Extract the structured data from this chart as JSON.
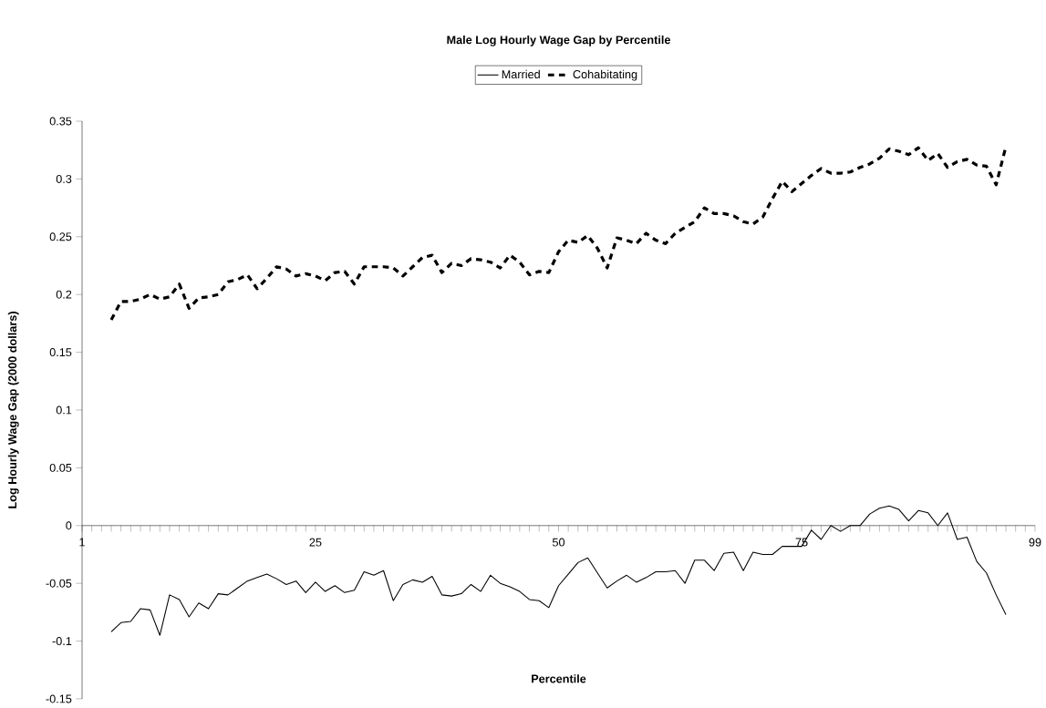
{
  "chart_data": {
    "type": "line",
    "title": "Male Log Hourly Wage Gap by Percentile",
    "xlabel": "Percentile",
    "ylabel": "Log Hourly Wage Gap (2000 dollars)",
    "x": [
      4,
      5,
      6,
      7,
      8,
      9,
      10,
      11,
      12,
      13,
      14,
      15,
      16,
      17,
      18,
      19,
      20,
      21,
      22,
      23,
      24,
      25,
      26,
      27,
      28,
      29,
      30,
      31,
      32,
      33,
      34,
      35,
      36,
      37,
      38,
      39,
      40,
      41,
      42,
      43,
      44,
      45,
      46,
      47,
      48,
      49,
      50,
      51,
      52,
      53,
      54,
      55,
      56,
      57,
      58,
      59,
      60,
      61,
      62,
      63,
      64,
      65,
      66,
      67,
      68,
      69,
      70,
      71,
      72,
      73,
      74,
      75,
      76,
      77,
      78,
      79,
      80,
      81,
      82,
      83,
      84,
      85,
      86,
      87,
      88,
      89,
      90,
      91,
      92,
      93,
      94,
      95,
      96
    ],
    "series": [
      {
        "name": "Married",
        "color": "#000000",
        "line_style": "solid",
        "values": [
          -0.092,
          -0.084,
          -0.083,
          -0.072,
          -0.073,
          -0.095,
          -0.06,
          -0.064,
          -0.079,
          -0.067,
          -0.072,
          -0.059,
          -0.06,
          -0.054,
          -0.048,
          -0.045,
          -0.042,
          -0.046,
          -0.051,
          -0.048,
          -0.058,
          -0.049,
          -0.057,
          -0.052,
          -0.058,
          -0.056,
          -0.04,
          -0.043,
          -0.039,
          -0.065,
          -0.051,
          -0.047,
          -0.049,
          -0.044,
          -0.06,
          -0.061,
          -0.059,
          -0.051,
          -0.057,
          -0.043,
          -0.05,
          -0.053,
          -0.057,
          -0.064,
          -0.065,
          -0.071,
          -0.052,
          -0.042,
          -0.032,
          -0.028,
          -0.041,
          -0.054,
          -0.048,
          -0.043,
          -0.049,
          -0.045,
          -0.04,
          -0.04,
          -0.039,
          -0.05,
          -0.03,
          -0.03,
          -0.039,
          -0.024,
          -0.023,
          -0.039,
          -0.023,
          -0.025,
          -0.025,
          -0.018,
          -0.018,
          -0.018,
          -0.004,
          -0.012,
          0.0,
          -0.005,
          0.0,
          0.0,
          0.01,
          0.015,
          0.017,
          0.014,
          0.004,
          0.013,
          0.011,
          0.0,
          0.011,
          -0.012,
          -0.01,
          -0.031,
          -0.041,
          -0.06,
          -0.077
        ]
      },
      {
        "name": "Cohabitating",
        "color": "#000000",
        "line_style": "dashed",
        "values": [
          0.178,
          0.194,
          0.194,
          0.196,
          0.2,
          0.196,
          0.198,
          0.209,
          0.188,
          0.197,
          0.198,
          0.2,
          0.211,
          0.213,
          0.217,
          0.205,
          0.214,
          0.224,
          0.222,
          0.216,
          0.218,
          0.216,
          0.212,
          0.219,
          0.22,
          0.209,
          0.224,
          0.224,
          0.224,
          0.223,
          0.216,
          0.224,
          0.232,
          0.234,
          0.219,
          0.227,
          0.225,
          0.231,
          0.23,
          0.228,
          0.223,
          0.234,
          0.228,
          0.217,
          0.22,
          0.219,
          0.237,
          0.247,
          0.245,
          0.251,
          0.24,
          0.223,
          0.249,
          0.247,
          0.244,
          0.253,
          0.247,
          0.244,
          0.253,
          0.258,
          0.263,
          0.275,
          0.27,
          0.27,
          0.268,
          0.263,
          0.261,
          0.267,
          0.283,
          0.298,
          0.289,
          0.296,
          0.303,
          0.309,
          0.305,
          0.305,
          0.306,
          0.31,
          0.313,
          0.318,
          0.326,
          0.324,
          0.321,
          0.327,
          0.316,
          0.322,
          0.31,
          0.315,
          0.317,
          0.312,
          0.311,
          0.295,
          0.328
        ]
      }
    ],
    "xlim": [
      1,
      99
    ],
    "xticks": [
      1,
      {
        "value": 2,
        "label": null
      },
      {
        "value": 3,
        "label": null
      },
      {
        "value": 4,
        "label": null
      },
      {
        "value": 5,
        "label": null
      },
      {
        "value": 6,
        "label": null
      },
      {
        "value": 7,
        "label": null
      },
      {
        "value": 8,
        "label": null
      },
      {
        "value": 9,
        "label": null
      },
      {
        "value": 10,
        "label": null
      },
      {
        "value": 11,
        "label": null
      },
      {
        "value": 12,
        "label": null
      },
      {
        "value": 13,
        "label": null
      },
      {
        "value": 14,
        "label": null
      },
      {
        "value": 15,
        "label": null
      },
      {
        "value": 16,
        "label": null
      },
      {
        "value": 17,
        "label": null
      },
      {
        "value": 18,
        "label": null
      },
      {
        "value": 19,
        "label": null
      },
      {
        "value": 20,
        "label": null
      },
      {
        "value": 21,
        "label": null
      },
      {
        "value": 22,
        "label": null
      },
      {
        "value": 23,
        "label": null
      },
      {
        "value": 24,
        "label": null
      },
      25,
      {
        "value": 26,
        "label": null
      },
      {
        "value": 27,
        "label": null
      },
      {
        "value": 28,
        "label": null
      },
      {
        "value": 29,
        "label": null
      },
      {
        "value": 30,
        "label": null
      },
      {
        "value": 31,
        "label": null
      },
      {
        "value": 32,
        "label": null
      },
      {
        "value": 33,
        "label": null
      },
      {
        "value": 34,
        "label": null
      },
      {
        "value": 35,
        "label": null
      },
      {
        "value": 36,
        "label": null
      },
      {
        "value": 37,
        "label": null
      },
      {
        "value": 38,
        "label": null
      },
      {
        "value": 39,
        "label": null
      },
      {
        "value": 40,
        "label": null
      },
      {
        "value": 41,
        "label": null
      },
      {
        "value": 42,
        "label": null
      },
      {
        "value": 43,
        "label": null
      },
      {
        "value": 44,
        "label": null
      },
      {
        "value": 45,
        "label": null
      },
      {
        "value": 46,
        "label": null
      },
      {
        "value": 47,
        "label": null
      },
      {
        "value": 48,
        "label": null
      },
      {
        "value": 49,
        "label": null
      },
      50,
      {
        "value": 51,
        "label": null
      },
      {
        "value": 52,
        "label": null
      },
      {
        "value": 53,
        "label": null
      },
      {
        "value": 54,
        "label": null
      },
      {
        "value": 55,
        "label": null
      },
      {
        "value": 56,
        "label": null
      },
      {
        "value": 57,
        "label": null
      },
      {
        "value": 58,
        "label": null
      },
      {
        "value": 59,
        "label": null
      },
      {
        "value": 60,
        "label": null
      },
      {
        "value": 61,
        "label": null
      },
      {
        "value": 62,
        "label": null
      },
      {
        "value": 63,
        "label": null
      },
      {
        "value": 64,
        "label": null
      },
      {
        "value": 65,
        "label": null
      },
      {
        "value": 66,
        "label": null
      },
      {
        "value": 67,
        "label": null
      },
      {
        "value": 68,
        "label": null
      },
      {
        "value": 69,
        "label": null
      },
      {
        "value": 70,
        "label": null
      },
      {
        "value": 71,
        "label": null
      },
      {
        "value": 72,
        "label": null
      },
      {
        "value": 73,
        "label": null
      },
      {
        "value": 74,
        "label": null
      },
      75,
      {
        "value": 76,
        "label": null
      },
      {
        "value": 77,
        "label": null
      },
      {
        "value": 78,
        "label": null
      },
      {
        "value": 79,
        "label": null
      },
      {
        "value": 80,
        "label": null
      },
      {
        "value": 81,
        "label": null
      },
      {
        "value": 82,
        "label": null
      },
      {
        "value": 83,
        "label": null
      },
      {
        "value": 84,
        "label": null
      },
      {
        "value": 85,
        "label": null
      },
      {
        "value": 86,
        "label": null
      },
      {
        "value": 87,
        "label": null
      },
      {
        "value": 88,
        "label": null
      },
      {
        "value": 89,
        "label": null
      },
      {
        "value": 90,
        "label": null
      },
      {
        "value": 91,
        "label": null
      },
      {
        "value": 92,
        "label": null
      },
      {
        "value": 93,
        "label": null
      },
      {
        "value": 94,
        "label": null
      },
      {
        "value": 95,
        "label": null
      },
      {
        "value": 96,
        "label": null
      },
      {
        "value": 97,
        "label": null
      },
      {
        "value": 98,
        "label": null
      },
      99
    ],
    "ylim": [
      -0.15,
      0.35
    ],
    "yticks": [
      -0.15,
      -0.1,
      -0.05,
      0,
      0.05,
      0.1,
      0.15,
      0.2,
      0.25,
      0.3,
      0.35
    ],
    "legend": "top",
    "marker": "none",
    "grid": false
  }
}
